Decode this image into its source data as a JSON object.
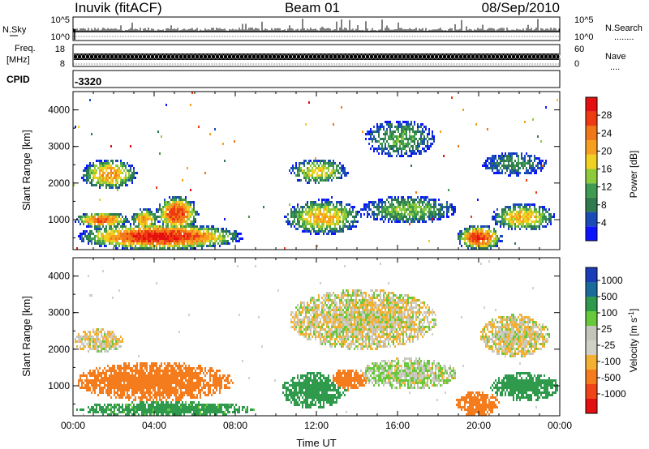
{
  "header": {
    "station": "Inuvik (fitACF)",
    "beam": "Beam 01",
    "date": "08/Sep/2010"
  },
  "strip_panels": {
    "nsky": {
      "left_label": "N.Sky",
      "left_ticks": [
        "10^5",
        "10^0"
      ],
      "right_ticks": [
        "10^5",
        "10^0"
      ],
      "right_label": "N.Search",
      "right_dots": "........"
    },
    "freq": {
      "left_label_1": "Freq.",
      "left_label_2": "[MHz]",
      "left_ticks": [
        "18",
        "8"
      ],
      "right_ticks": [
        "60",
        "0"
      ],
      "right_label": "Nave",
      "right_dots": "...."
    },
    "cpid": {
      "label": "CPID",
      "value": "-3320"
    }
  },
  "colors": {
    "power_scale": [
      "#0a14ff",
      "#1a4cb8",
      "#2f7a4e",
      "#3f9a52",
      "#8ccc3c",
      "#f0d020",
      "#f7a020",
      "#f07818",
      "#ee3a12",
      "#e41010"
    ],
    "velocity_scale": [
      "#e41010",
      "#f04418",
      "#f47c1c",
      "#f4b030",
      "#d0d0c8",
      "#c4c4bc",
      "#66c83a",
      "#2f9a4c",
      "#1a6a9a",
      "#1a3cb8"
    ]
  },
  "chart_data": [
    {
      "type": "heatmap",
      "name": "power",
      "ylabel": "Slant Range [km]",
      "ylim": [
        180,
        4500
      ],
      "yticks": [
        "1000",
        "2000",
        "3000",
        "4000"
      ],
      "xlim": [
        "00:00",
        "24:00"
      ],
      "colorbar": {
        "label": "Power [dB]",
        "ticks": [
          "4",
          "8",
          "12",
          "16",
          "20",
          "24",
          "28"
        ],
        "range": [
          0,
          32
        ]
      }
    },
    {
      "type": "heatmap",
      "name": "velocity",
      "ylabel": "Slant Range [km]",
      "ylim": [
        180,
        4500
      ],
      "yticks": [
        "1000",
        "2000",
        "3000",
        "4000"
      ],
      "xlim": [
        "00:00",
        "24:00"
      ],
      "xticks": [
        "00:00",
        "04:00",
        "08:00",
        "12:00",
        "16:00",
        "20:00",
        "00:00"
      ],
      "xlabel": "Time UT",
      "colorbar": {
        "label": "Velocity [m s",
        "label_sup": "-1",
        "label_end": "]",
        "ticks": [
          "1000",
          "500",
          "100",
          "25",
          "-25",
          "-100",
          "-500",
          "-1000"
        ]
      }
    }
  ]
}
